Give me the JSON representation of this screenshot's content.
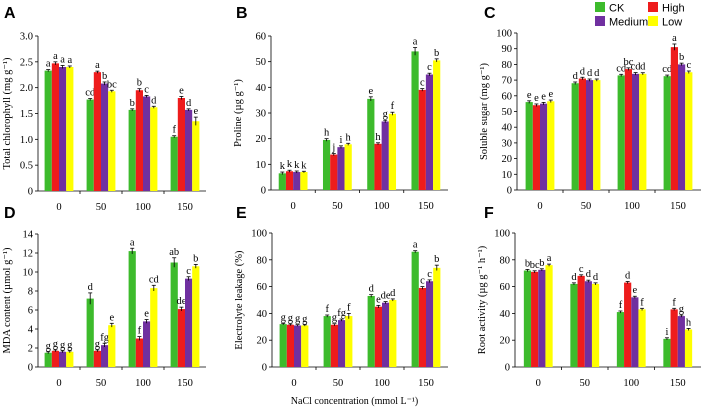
{
  "legend": {
    "entries": [
      {
        "name": "CK",
        "color": "#3dbb2c"
      },
      {
        "name": "High",
        "color": "#ee1c1c"
      },
      {
        "name": "Medium",
        "color": "#7030a0"
      },
      {
        "name": "Low",
        "color": "#ffff00"
      }
    ]
  },
  "shared_xlabel": "NaCl concentration (mmol L⁻¹)",
  "chart_data": [
    {
      "type": "bar",
      "panel": "A",
      "ylabel": "Total chlorophyll (mg g⁻¹)",
      "ylim": [
        0,
        3
      ],
      "yticks": [
        0,
        0.5,
        1.0,
        1.5,
        2.0,
        2.5,
        3.0
      ],
      "ytick_labels": [
        "0",
        "0.5",
        "1.0",
        "1.5",
        "2.0",
        "2.5",
        "3.0"
      ],
      "categories": [
        "0",
        "50",
        "100",
        "150"
      ],
      "series": [
        {
          "name": "CK",
          "values": [
            2.33,
            1.77,
            1.57,
            1.05
          ],
          "errors": [
            0.02,
            0.02,
            0.02,
            0.02
          ],
          "labels": [
            "a",
            "cd",
            "b",
            "f"
          ]
        },
        {
          "name": "High",
          "values": [
            2.47,
            2.3,
            1.95,
            1.8
          ],
          "errors": [
            0.03,
            0.02,
            0.03,
            0.03
          ],
          "labels": [
            "a",
            "a",
            "b",
            "e"
          ]
        },
        {
          "name": "Medium",
          "values": [
            2.4,
            2.08,
            1.83,
            1.57
          ],
          "errors": [
            0.03,
            0.03,
            0.02,
            0.02
          ],
          "labels": [
            "a",
            "b",
            "c",
            "d"
          ]
        },
        {
          "name": "Low",
          "values": [
            2.4,
            1.93,
            1.62,
            1.35
          ],
          "errors": [
            0.02,
            0.02,
            0.02,
            0.08
          ],
          "labels": [
            "a",
            "bc",
            "d",
            "e"
          ]
        }
      ]
    },
    {
      "type": "bar",
      "panel": "B",
      "ylabel": "Proline (µg g⁻¹)",
      "ylim": [
        0,
        60
      ],
      "yticks": [
        0,
        10,
        20,
        30,
        40,
        50,
        60
      ],
      "ytick_labels": [
        "0",
        "10",
        "20",
        "30",
        "40",
        "50",
        "60"
      ],
      "categories": [
        "0",
        "50",
        "100",
        "150"
      ],
      "series": [
        {
          "name": "CK",
          "values": [
            6.5,
            19.5,
            35.5,
            54.0
          ],
          "errors": [
            0.5,
            0.5,
            0.8,
            1.5
          ],
          "labels": [
            "k",
            "h",
            "e",
            "a"
          ]
        },
        {
          "name": "High",
          "values": [
            7.3,
            13.8,
            18.0,
            39.0
          ],
          "errors": [
            0.4,
            0.4,
            0.4,
            0.5
          ],
          "labels": [
            "k",
            "j",
            "h",
            "c"
          ]
        },
        {
          "name": "Medium",
          "values": [
            7.0,
            16.7,
            26.7,
            45.0
          ],
          "errors": [
            0.4,
            0.5,
            0.5,
            0.5
          ],
          "labels": [
            "k",
            "i",
            "g",
            "c"
          ]
        },
        {
          "name": "Low",
          "values": [
            7.0,
            17.8,
            29.7,
            50.5
          ],
          "errors": [
            0.3,
            0.4,
            0.6,
            0.6
          ],
          "labels": [
            "k",
            "h",
            "f",
            "b"
          ]
        }
      ]
    },
    {
      "type": "bar",
      "panel": "C",
      "ylabel": "Soluble sugar  (mg g⁻¹)",
      "ylim": [
        0,
        100
      ],
      "yticks": [
        0,
        10,
        20,
        30,
        40,
        50,
        60,
        70,
        80,
        90,
        100
      ],
      "ytick_labels": [
        "0",
        "10",
        "20",
        "30",
        "40",
        "50",
        "60",
        "70",
        "80",
        "90",
        "100"
      ],
      "categories": [
        "0",
        "50",
        "100",
        "150"
      ],
      "series": [
        {
          "name": "CK",
          "values": [
            56.0,
            68.0,
            73.0,
            72.5
          ],
          "errors": [
            0.8,
            0.8,
            0.7,
            0.7
          ],
          "labels": [
            "e",
            "d",
            "cd",
            "cd"
          ]
        },
        {
          "name": "High",
          "values": [
            54.0,
            71.0,
            77.0,
            91.0
          ],
          "errors": [
            0.8,
            0.8,
            0.8,
            2.0
          ],
          "labels": [
            "e",
            "d",
            "bc",
            "a"
          ]
        },
        {
          "name": "Medium",
          "values": [
            55.0,
            70.0,
            74.0,
            80.0
          ],
          "errors": [
            0.8,
            0.7,
            0.8,
            0.8
          ],
          "labels": [
            "e",
            "d",
            "cd",
            "b"
          ]
        },
        {
          "name": "Low",
          "values": [
            56.5,
            70.0,
            74.0,
            75.0
          ],
          "errors": [
            0.8,
            0.7,
            0.7,
            0.8
          ],
          "labels": [
            "e",
            "d",
            "d",
            "c"
          ]
        }
      ]
    },
    {
      "type": "bar",
      "panel": "D",
      "ylabel": "MDA content (µmol g⁻¹)",
      "ylim": [
        0,
        14
      ],
      "yticks": [
        0,
        2,
        4,
        6,
        8,
        10,
        12,
        14
      ],
      "ytick_labels": [
        "0",
        "2",
        "4",
        "6",
        "8",
        "10",
        "12",
        "14"
      ],
      "categories": [
        "0",
        "50",
        "100",
        "150"
      ],
      "series": [
        {
          "name": "CK",
          "values": [
            1.5,
            7.2,
            12.2,
            11.0
          ],
          "errors": [
            0.1,
            0.6,
            0.3,
            0.5
          ],
          "labels": [
            "g",
            "d",
            "a",
            "ab"
          ]
        },
        {
          "name": "High",
          "values": [
            1.7,
            1.7,
            3.0,
            6.1
          ],
          "errors": [
            0.1,
            0.1,
            0.2,
            0.2
          ],
          "labels": [
            "g",
            "g",
            "f",
            "de"
          ]
        },
        {
          "name": "Medium",
          "values": [
            1.6,
            2.3,
            4.8,
            9.3
          ],
          "errors": [
            0.1,
            0.2,
            0.2,
            0.2
          ],
          "labels": [
            "g",
            "fg",
            "e",
            "c"
          ]
        },
        {
          "name": "Low",
          "values": [
            1.6,
            4.4,
            8.3,
            10.6
          ],
          "errors": [
            0.1,
            0.2,
            0.3,
            0.2
          ],
          "labels": [
            "g",
            "e",
            "cd",
            "b"
          ]
        }
      ]
    },
    {
      "type": "bar",
      "panel": "E",
      "ylabel": "Electrolyte leakage (%)",
      "ylim": [
        0,
        100
      ],
      "yticks": [
        0,
        20,
        40,
        60,
        80,
        100
      ],
      "ytick_labels": [
        "0",
        "20",
        "40",
        "60",
        "80",
        "100"
      ],
      "categories": [
        "0",
        "50",
        "100",
        "150"
      ],
      "series": [
        {
          "name": "CK",
          "values": [
            32.0,
            38.0,
            53.0,
            86.0
          ],
          "errors": [
            0.6,
            0.8,
            1.0,
            0.8
          ],
          "labels": [
            "g",
            "f",
            "d",
            "a"
          ]
        },
        {
          "name": "High",
          "values": [
            31.5,
            31.5,
            45.0,
            59.0
          ],
          "errors": [
            0.6,
            0.8,
            1.0,
            1.0
          ],
          "labels": [
            "g",
            "g",
            "e",
            "c"
          ]
        },
        {
          "name": "Medium",
          "values": [
            31.0,
            35.0,
            48.0,
            64.0
          ],
          "errors": [
            0.6,
            0.8,
            0.8,
            1.0
          ],
          "labels": [
            "g",
            "fg",
            "de",
            "c"
          ]
        },
        {
          "name": "Low",
          "values": [
            31.0,
            38.0,
            50.0,
            74.0
          ],
          "errors": [
            0.5,
            2.0,
            0.8,
            2.0
          ],
          "labels": [
            "g",
            "f",
            "d",
            "b"
          ]
        }
      ]
    },
    {
      "type": "bar",
      "panel": "F",
      "ylabel": "Root activity (µg g⁻¹ h⁻¹)",
      "ylim": [
        0,
        100
      ],
      "yticks": [
        0,
        20,
        40,
        60,
        80,
        100
      ],
      "ytick_labels": [
        "0",
        "20",
        "40",
        "60",
        "80",
        "100"
      ],
      "categories": [
        "0",
        "50",
        "100",
        "150"
      ],
      "series": [
        {
          "name": "CK",
          "values": [
            72.0,
            62.0,
            41.0,
            21.0
          ],
          "errors": [
            0.8,
            0.8,
            0.8,
            0.8
          ],
          "labels": [
            "b",
            "d",
            "f",
            "i"
          ]
        },
        {
          "name": "High",
          "values": [
            71.0,
            68.0,
            63.0,
            43.0
          ],
          "errors": [
            0.8,
            0.8,
            0.8,
            0.8
          ],
          "labels": [
            "bc",
            "c",
            "d",
            "f"
          ]
        },
        {
          "name": "Medium",
          "values": [
            72.5,
            64.0,
            52.0,
            38.0
          ],
          "errors": [
            0.8,
            0.8,
            0.8,
            0.8
          ],
          "labels": [
            "b",
            "d",
            "e",
            "g"
          ]
        },
        {
          "name": "Low",
          "values": [
            76.0,
            62.0,
            43.0,
            28.0
          ],
          "errors": [
            0.8,
            0.8,
            0.8,
            0.8
          ],
          "labels": [
            "a",
            "d",
            "f",
            "h"
          ]
        }
      ]
    }
  ]
}
